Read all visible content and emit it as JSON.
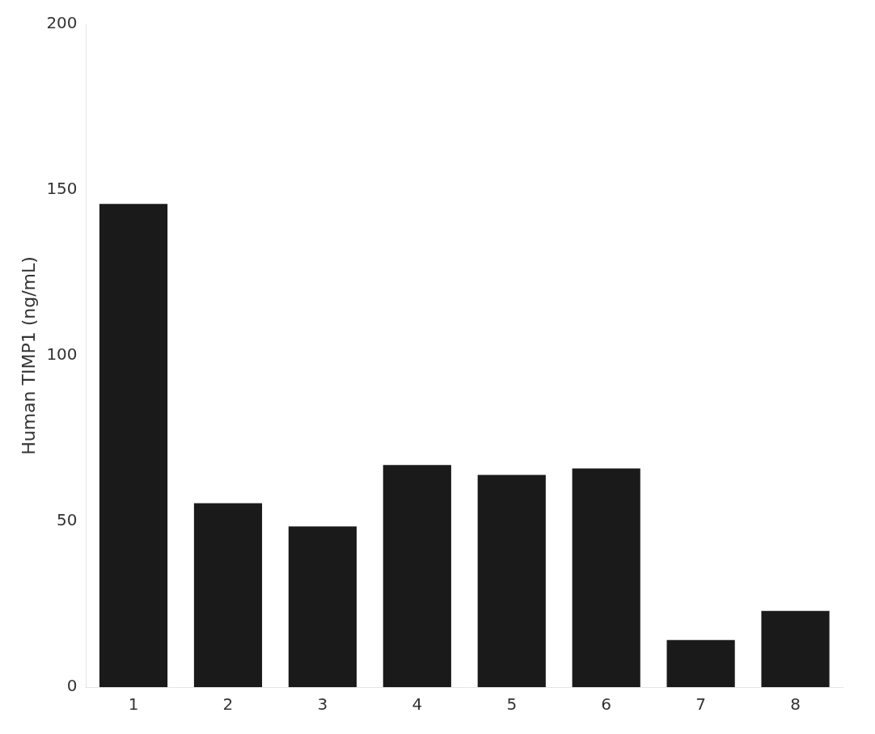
{
  "chart_data": {
    "type": "bar",
    "categories": [
      "1",
      "2",
      "3",
      "4",
      "5",
      "6",
      "7",
      "8"
    ],
    "values": [
      145.8,
      55.5,
      48.5,
      67.0,
      64.0,
      66.0,
      14.2,
      23.0
    ],
    "color": "#1a1a1a",
    "ylabel": "Human TIMP1 (ng/mL)",
    "ylim": [
      0,
      200
    ],
    "yticks": [
      0,
      50,
      100,
      150,
      200
    ],
    "grid": false
  }
}
